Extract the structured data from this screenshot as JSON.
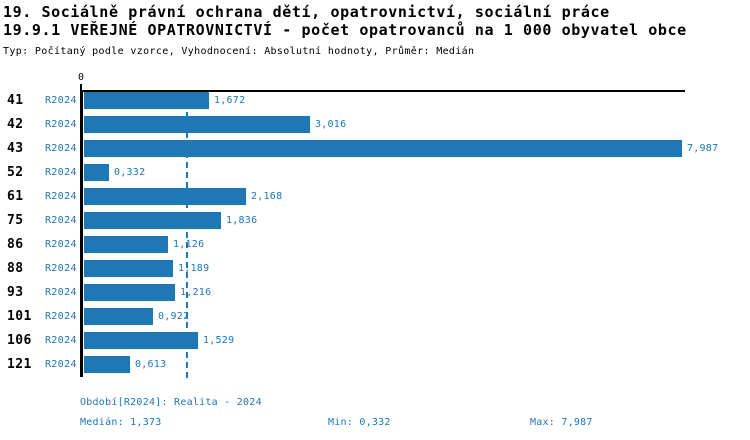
{
  "header": {
    "line1": "19. Sociálně právní ochrana dětí, opatrovnictví, sociální práce",
    "line2": "19.9.1 VEŘEJNÉ OPATROVNICTVÍ - počet opatrovanců na 1 000 obyvatel obce",
    "line3": "Typ: Počítaný podle vzorce, Vyhodnocení: Absolutní hodnoty, Průměr: Medián"
  },
  "chart_data": {
    "type": "bar",
    "orientation": "horizontal",
    "title": "19.9.1 VEŘEJNÉ OPATROVNICTVÍ - počet opatrovanců na 1 000 obyvatel obce",
    "categories": [
      "41",
      "42",
      "43",
      "52",
      "61",
      "75",
      "86",
      "88",
      "93",
      "101",
      "106",
      "121"
    ],
    "series_label": "R2024",
    "values": [
      1.672,
      3.016,
      7.987,
      0.332,
      2.168,
      1.836,
      1.126,
      1.189,
      1.216,
      0.922,
      1.529,
      0.613
    ],
    "value_labels": [
      "1,672",
      "3,016",
      "7,987",
      "0,332",
      "2,168",
      "1,836",
      "1,126",
      "1,189",
      "1,216",
      "0,922",
      "1,529",
      "0,613"
    ],
    "x_axis": {
      "min": 0,
      "max": 8.03,
      "tick_labels": [
        "0"
      ]
    },
    "median_value": 1.373,
    "min_value": 0.332,
    "max_value": 7.987,
    "median_line": true,
    "grid": false,
    "legend": false
  },
  "footer": {
    "period": "Období[R2024]: Realita - 2024",
    "median": "Medián: 1,373",
    "min": "Min: 0,332",
    "max": "Max: 7,987"
  },
  "theme": {
    "accent": "#1f77b4",
    "axis": "#000000",
    "text": "#000000",
    "background": "#ffffff"
  }
}
